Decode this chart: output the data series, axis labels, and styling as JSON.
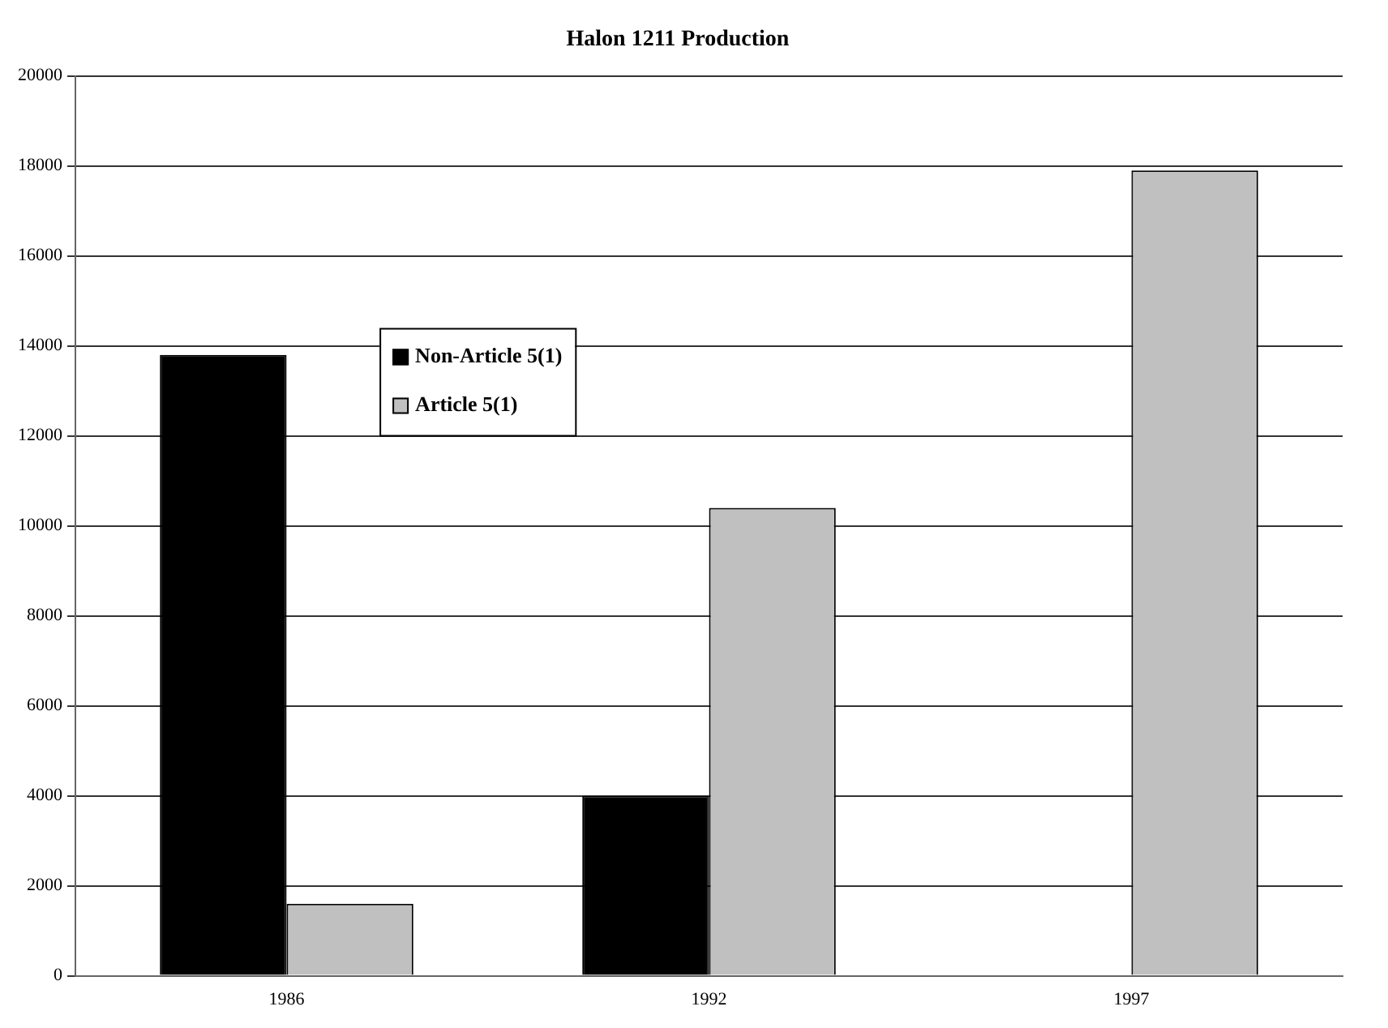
{
  "chart_data": {
    "type": "bar",
    "title": "Halon 1211 Production",
    "categories": [
      "1986",
      "1992",
      "1997"
    ],
    "series": [
      {
        "name": "Non-Article 5(1)",
        "color": "#000000",
        "values": [
          13800,
          4000,
          0
        ]
      },
      {
        "name": "Article 5(1)",
        "color": "#c0c0c0",
        "values": [
          1600,
          10400,
          17900
        ]
      }
    ],
    "ylim": [
      0,
      20000
    ],
    "yticks": [
      0,
      2000,
      4000,
      6000,
      8000,
      10000,
      12000,
      14000,
      16000,
      18000,
      20000
    ],
    "grid": "y",
    "legend": "top left"
  }
}
